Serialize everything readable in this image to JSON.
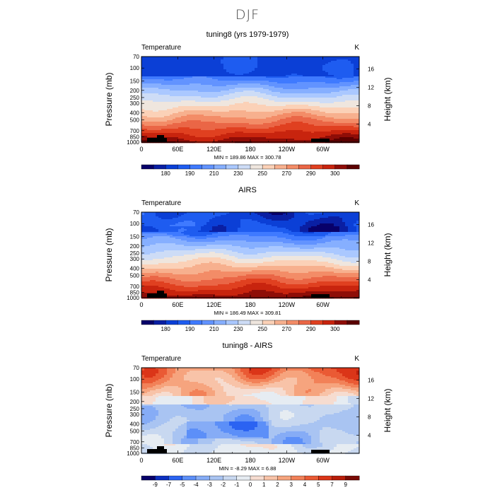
{
  "page": {
    "title": "DJF"
  },
  "colors": {
    "temperature_scale": [
      "#08006a",
      "#0a1fa3",
      "#0b3fd6",
      "#1e5cf0",
      "#3f7aff",
      "#6293ff",
      "#86afff",
      "#aac8ff",
      "#cddcf6",
      "#efe6de",
      "#fbd1b7",
      "#f7b08e",
      "#f38c67",
      "#ea6646",
      "#e04020",
      "#c8240e",
      "#8f0d07",
      "#5b0000"
    ],
    "difference_scale": [
      "#08006a",
      "#0b2fc0",
      "#2b63f2",
      "#5c8ff8",
      "#86acf6",
      "#a9c4f2",
      "#c8d8f0",
      "#e6ecf2",
      "#f6dcd0",
      "#f8c3a8",
      "#f6a47e",
      "#f28158",
      "#ea5a34",
      "#db3518",
      "#b81d0a",
      "#7a0a05"
    ]
  },
  "chart_data": [
    {
      "type": "heatmap",
      "title": "tuning8 (yrs 1979-1979)",
      "left_label": "Temperature",
      "units": "K",
      "ylabel": "Pressure (mb)",
      "ylabel_right": "Height (km)",
      "x_ticks": [
        "0",
        "60E",
        "120E",
        "180",
        "120W",
        "60W"
      ],
      "y_ticks": [
        "70",
        "100",
        "150",
        "200",
        "250",
        "300",
        "400",
        "500",
        "700",
        "850",
        "1000"
      ],
      "y_ticks_right": [
        "16",
        "12",
        "8",
        "4"
      ],
      "stats": "MIN = 189.86   MAX = 300.78",
      "colorbar_labels": [
        "180",
        "190",
        "210",
        "230",
        "250",
        "270",
        "290",
        "300"
      ],
      "scale": "temperature"
    },
    {
      "type": "heatmap",
      "title": "AIRS",
      "left_label": "Temperature",
      "units": "K",
      "ylabel": "Pressure (mb)",
      "ylabel_right": "Height (km)",
      "x_ticks": [
        "0",
        "60E",
        "120E",
        "180",
        "120W",
        "60W"
      ],
      "y_ticks": [
        "70",
        "100",
        "150",
        "200",
        "250",
        "300",
        "400",
        "500",
        "700",
        "850",
        "1000"
      ],
      "y_ticks_right": [
        "16",
        "12",
        "8",
        "4"
      ],
      "stats": "MIN = 186.49   MAX = 309.81",
      "colorbar_labels": [
        "180",
        "190",
        "210",
        "230",
        "250",
        "270",
        "290",
        "300"
      ],
      "scale": "temperature"
    },
    {
      "type": "heatmap",
      "title": "tuning8 - AIRS",
      "left_label": "Temperature",
      "units": "K",
      "ylabel": "Pressure (mb)",
      "ylabel_right": "Height (km)",
      "x_ticks": [
        "0",
        "60E",
        "120E",
        "180",
        "120W",
        "60W"
      ],
      "y_ticks": [
        "70",
        "100",
        "150",
        "200",
        "250",
        "300",
        "400",
        "500",
        "700",
        "850",
        "1000"
      ],
      "y_ticks_right": [
        "16",
        "12",
        "8",
        "4"
      ],
      "stats": "MIN =  -8.29   MAX =   6.88",
      "colorbar_labels": [
        "-9",
        "-7",
        "-5",
        "-4",
        "-3",
        "-2",
        "-1",
        "0",
        "1",
        "2",
        "3",
        "4",
        "5",
        "7",
        "9"
      ],
      "scale": "difference"
    }
  ]
}
